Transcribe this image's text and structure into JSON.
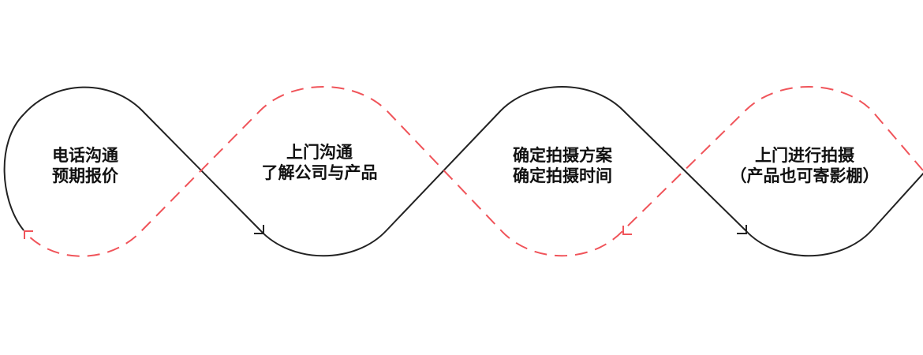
{
  "colors": {
    "solid_line": "#222222",
    "dashed_line": "#f0545a",
    "text": "#111111"
  },
  "steps": [
    {
      "line1": "电话沟通",
      "line2": "预期报价"
    },
    {
      "line1": "上门沟通",
      "line2": "了解公司与产品"
    },
    {
      "line1": "确定拍摄方案",
      "line2": "确定拍摄时间"
    },
    {
      "line1": "上门进行拍摄",
      "line2": "（产品也可寄影棚）"
    }
  ]
}
